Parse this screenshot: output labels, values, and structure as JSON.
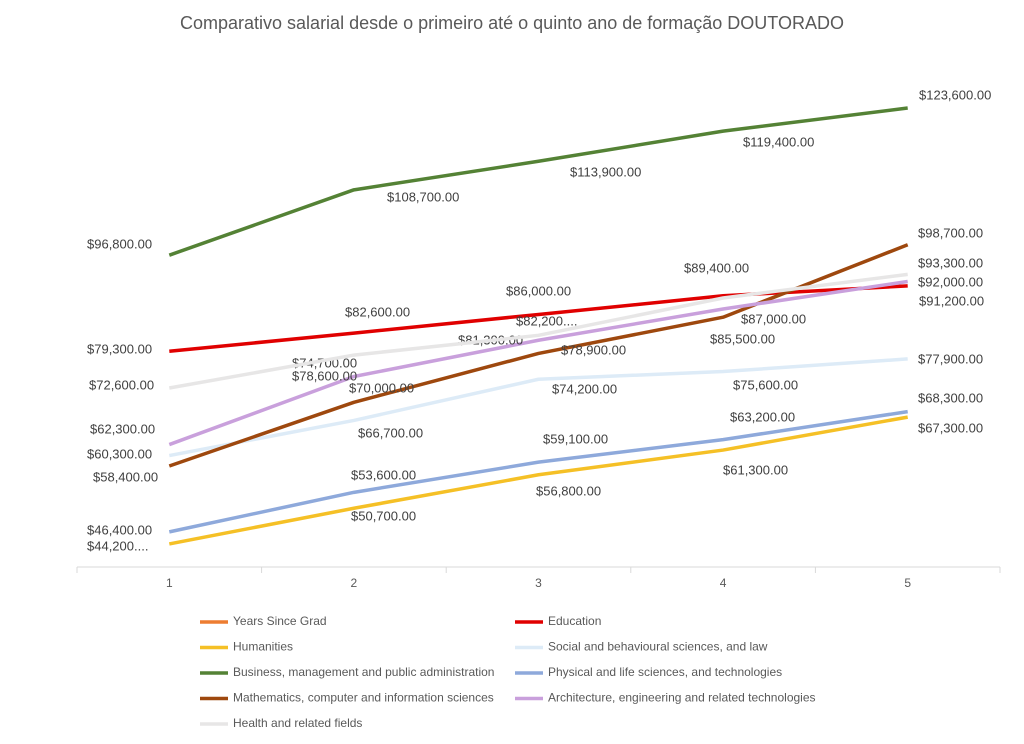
{
  "chart_data": {
    "type": "line",
    "title": "Comparativo salarial desde o primeiro até o quinto ano de formação DOUTORADO",
    "categories": [
      "1",
      "2",
      "3",
      "4",
      "5"
    ],
    "ylim": [
      40000,
      140000
    ],
    "series": [
      {
        "name": "Years Since Grad",
        "color": "#ED7D31",
        "values": [
          null,
          null,
          null,
          null,
          null
        ]
      },
      {
        "name": "Education",
        "color": "#E00000",
        "values": [
          79300,
          82600,
          86000,
          89400,
          91200
        ],
        "value_labels": [
          "$79,300.00",
          "$82,600.00",
          "$86,000.00",
          "$89,400.00",
          "$91,200.00"
        ]
      },
      {
        "name": "Humanities",
        "color": "#F5C026",
        "values": [
          44200,
          50700,
          56800,
          61300,
          67300
        ],
        "value_labels": [
          "$44,200....",
          "$50,700.00",
          "$56,800.00",
          "$61,300.00",
          "$67,300.00"
        ]
      },
      {
        "name": "Social and behavioural sciences, and law",
        "color": "#DDEBF7",
        "values": [
          60300,
          66700,
          74200,
          75600,
          77900
        ],
        "value_labels": [
          "$60,300.00",
          "$66,700.00",
          "$74,200.00",
          "$75,600.00",
          "$77,900.00"
        ]
      },
      {
        "name": "Business, management and public administration",
        "color": "#548235",
        "values": [
          96800,
          108700,
          113900,
          119400,
          123600
        ],
        "value_labels": [
          "$96,800.00",
          "$108,700.00",
          "$113,900.00",
          "$119,400.00",
          "$123,600.00"
        ]
      },
      {
        "name": "Physical and life sciences, and technologies",
        "color": "#8EA9DB",
        "values": [
          46400,
          53600,
          59100,
          63200,
          68300
        ],
        "value_labels": [
          "$46,400.00",
          "$53,600.00",
          "$59,100.00",
          "$63,200.00",
          "$68,300.00"
        ]
      },
      {
        "name": "Mathematics, computer and information sciences",
        "color": "#9E480E",
        "values": [
          58400,
          70000,
          78900,
          85500,
          98700
        ],
        "value_labels": [
          "$58,400.00",
          "$70,000.00",
          "$78,900.00",
          "$85,500.00",
          "$98,700.00"
        ]
      },
      {
        "name": "Architecture, engineering and related technologies",
        "color": "#C9A0DC",
        "values": [
          62300,
          74700,
          81300,
          87000,
          92000
        ],
        "value_labels": [
          "$62,300.00",
          "$74,700.00",
          "$81,300.00",
          "$87,000.00",
          "$92,000.00"
        ]
      },
      {
        "name": "Health and related fields",
        "color": "#E7E6E6",
        "values": [
          72600,
          78600,
          82200,
          89000,
          93300
        ],
        "value_labels": [
          "$72,600.00",
          "$78,600.00",
          "$82,200....",
          null,
          "$93,300.00"
        ]
      }
    ]
  }
}
